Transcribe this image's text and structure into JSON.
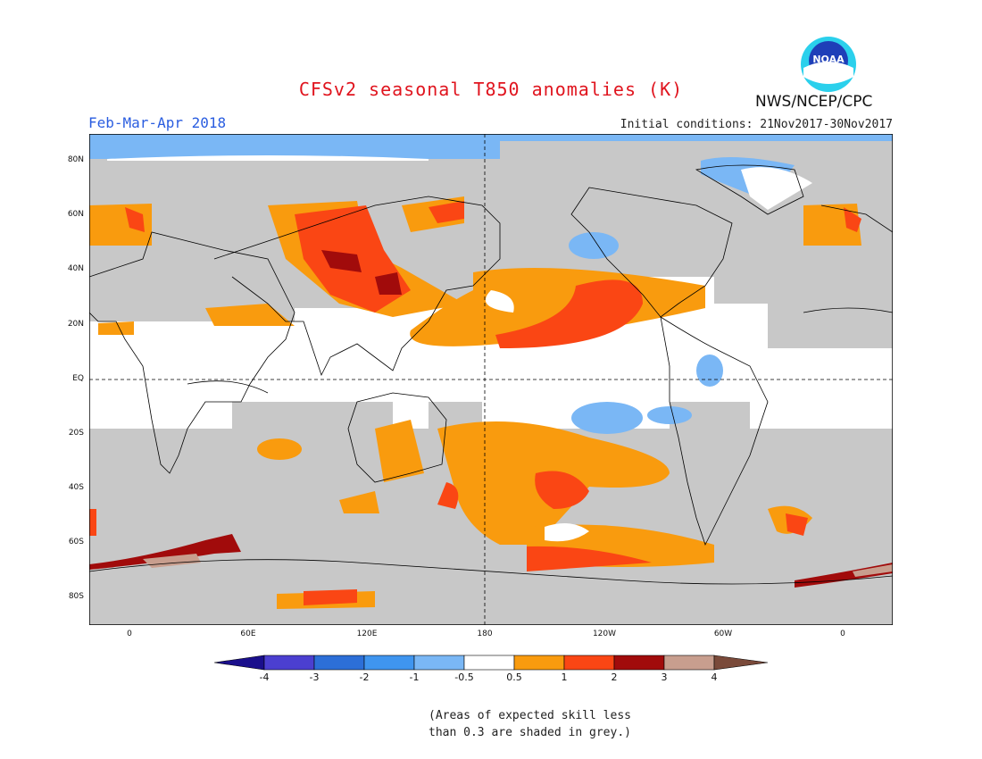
{
  "title": "CFSv2 seasonal T850 anomalies (K)",
  "season": "Feb-Mar-Apr 2018",
  "initial_conditions": "Initial conditions: 21Nov2017-30Nov2017",
  "agency": "NWS/NCEP/CPC",
  "logo_text": "NOAA",
  "lat_labels": [
    "80N",
    "60N",
    "40N",
    "20N",
    "EQ",
    "20S",
    "40S",
    "60S",
    "80S"
  ],
  "lon_labels": [
    "0",
    "60E",
    "120E",
    "180",
    "120W",
    "60W",
    "0"
  ],
  "colorbar": {
    "ticks": [
      "-4",
      "-3",
      "-2",
      "-1",
      "-0.5",
      "0.5",
      "1",
      "2",
      "3",
      "4"
    ],
    "colors": [
      "#1a0f8c",
      "#4b3fd0",
      "#2c6fd8",
      "#3f95ef",
      "#7ab7f5",
      "#ffffff",
      "#f99b0e",
      "#fa4614",
      "#a10b0b",
      "#c89e8e",
      "#7a4a3a"
    ]
  },
  "skill_note": [
    "(Areas of expected skill less",
    "than 0.3 are shaded in grey.)"
  ],
  "colors": {
    "grey": "#c8c8c8",
    "title": "#e0141e",
    "season": "#2a5de0"
  }
}
